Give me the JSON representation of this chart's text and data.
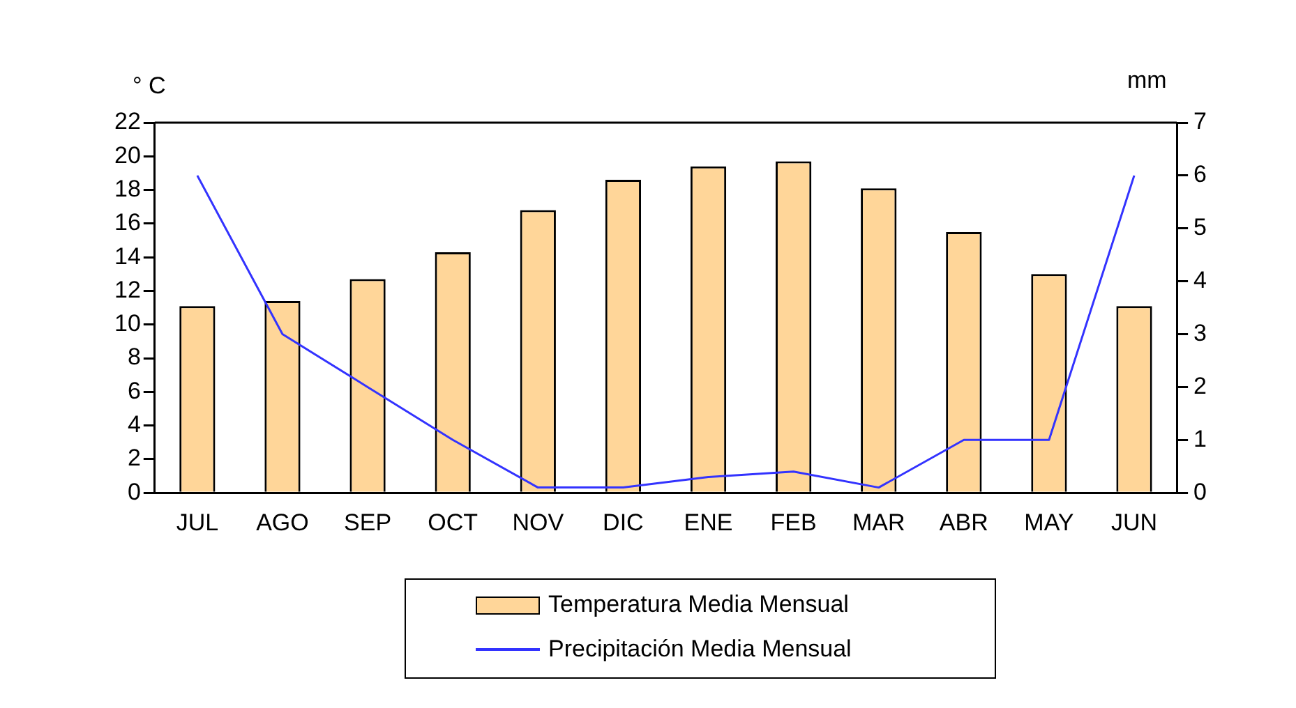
{
  "chart_data": {
    "type": "bar",
    "ylabel": "° C",
    "y2label": "mm",
    "categories": [
      "JUL",
      "AGO",
      "SEP",
      "OCT",
      "NOV",
      "DIC",
      "ENE",
      "FEB",
      "MAR",
      "ABR",
      "MAY",
      "JUN"
    ],
    "series": [
      {
        "name": "Temperatura Media Mensual",
        "color": "#ffd699",
        "values": [
          11.1,
          11.4,
          12.7,
          14.3,
          16.8,
          18.6,
          19.4,
          19.7,
          18.1,
          15.5,
          13.0,
          11.1
        ]
      },
      {
        "name": "Precipitación Media Mensual",
        "type": "line",
        "axis": "y2",
        "color": "#3333ff",
        "values": [
          6,
          3,
          2,
          1,
          0.1,
          0.1,
          0.3,
          0.4,
          0.1,
          1,
          1,
          6
        ]
      }
    ],
    "ylim": [
      0,
      22
    ],
    "yticks": [
      0,
      2,
      4,
      6,
      8,
      10,
      12,
      14,
      16,
      18,
      20,
      22
    ],
    "y2lim": [
      0,
      7
    ],
    "y2ticks": [
      0,
      1,
      2,
      3,
      4,
      5,
      6,
      7
    ],
    "grid": false,
    "legend": "bottom",
    "marker": "none",
    "line_style": "solid"
  }
}
